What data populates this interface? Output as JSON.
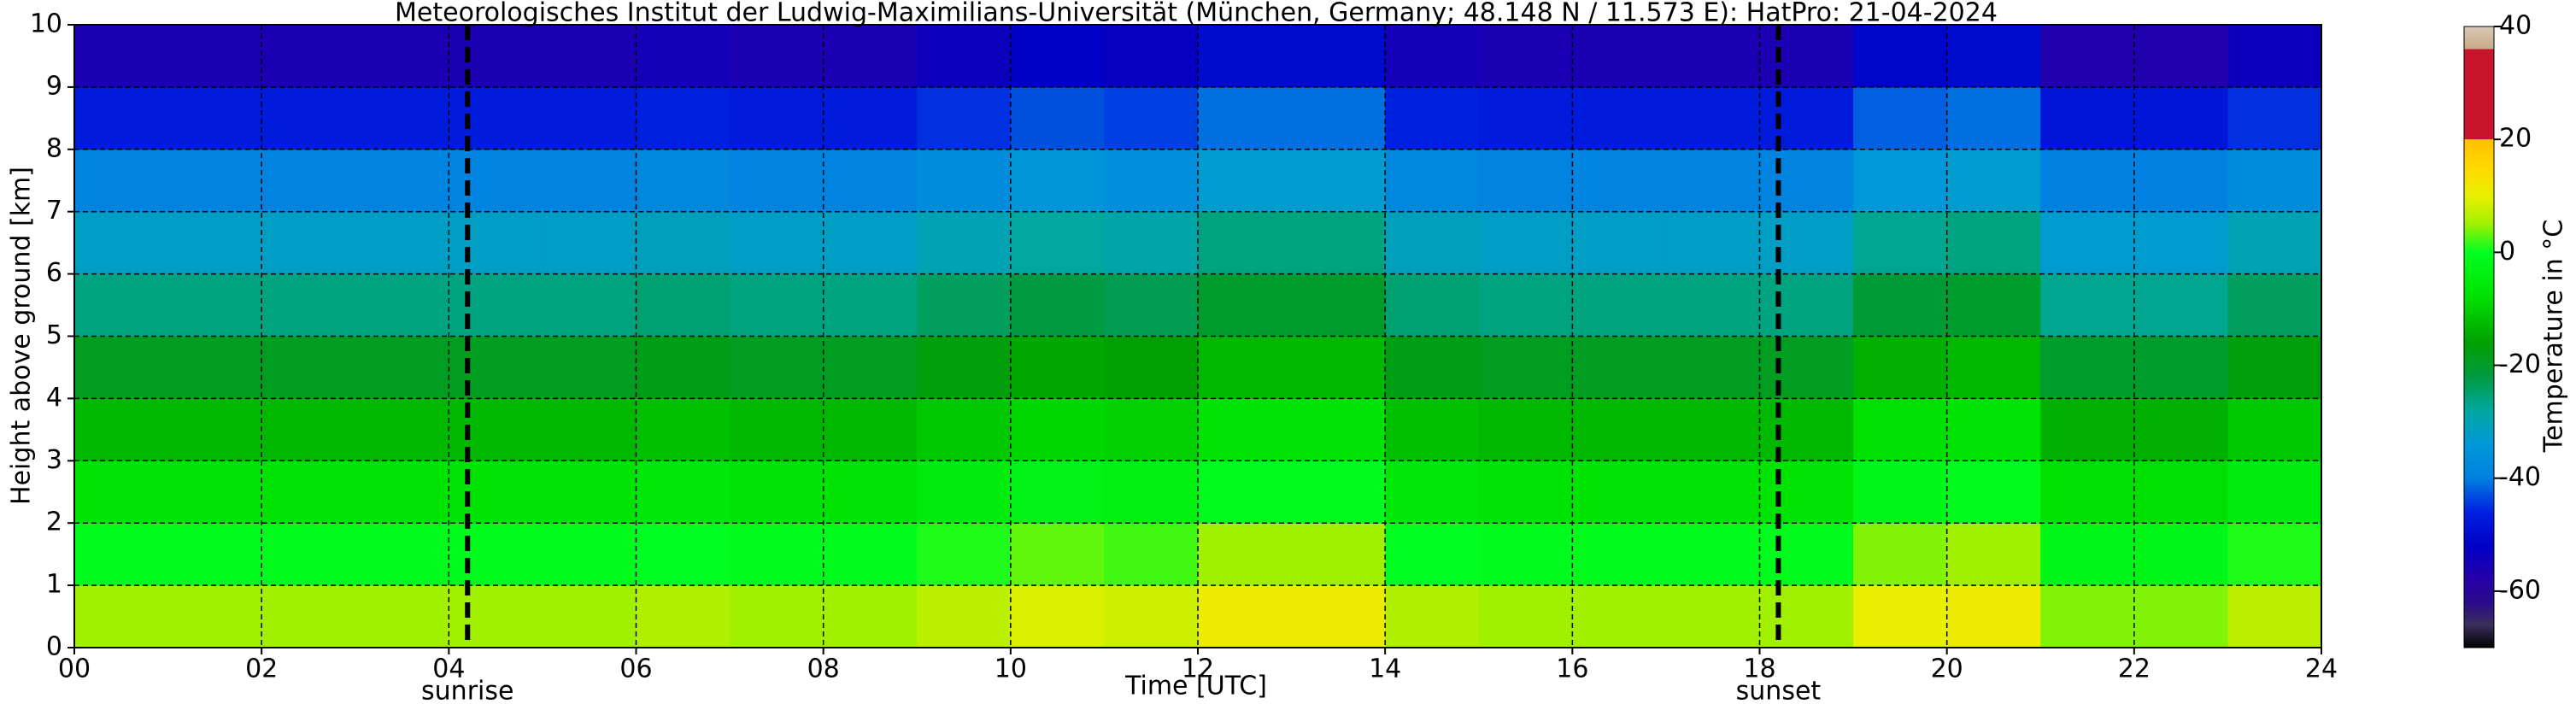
{
  "chart_data": {
    "type": "heatmap",
    "title": "Meteorologisches Institut der Ludwig-Maximilians-Universität (München, Germany; 48.148 N / 11.573 E):    HatPro: 21-04-2024",
    "x_label": "Time [UTC]",
    "y_label": "Height above ground [km]",
    "colorbar_label": "Temperature in °C",
    "x": [
      0.5,
      1.5,
      2.5,
      3.5,
      4.5,
      5.5,
      6.5,
      7.5,
      8.5,
      9.5,
      10.5,
      11.5,
      12.5,
      13.5,
      14.5,
      15.5,
      16.5,
      17.5,
      18.5,
      19.5,
      20.5,
      21.5,
      22.5,
      23.5
    ],
    "y": [
      0.5,
      1.5,
      2.5,
      3.5,
      4.5,
      5.5,
      6.5,
      7.5,
      8.5,
      9.5
    ],
    "z": [
      [
        5,
        5,
        5,
        5,
        5,
        5,
        6,
        5,
        5,
        7,
        9,
        8,
        11,
        11,
        6,
        5,
        5,
        5,
        5,
        10,
        11,
        4,
        4,
        7
      ],
      [
        -1,
        -1,
        -1,
        -1,
        -1,
        -1,
        0,
        -1,
        -1,
        1,
        3,
        2,
        5,
        5,
        0,
        -1,
        -1,
        -1,
        -1,
        4,
        5,
        -2,
        -2,
        1
      ],
      [
        -7,
        -7,
        -7,
        -7,
        -7,
        -7,
        -6,
        -7,
        -7,
        -5,
        -3,
        -4,
        -1,
        -1,
        -6,
        -7,
        -7,
        -7,
        -7,
        -2,
        -1,
        -8,
        -8,
        -5
      ],
      [
        -13,
        -13,
        -13,
        -13,
        -13,
        -13,
        -12,
        -13,
        -13,
        -11,
        -9,
        -10,
        -7,
        -7,
        -12,
        -13,
        -13,
        -13,
        -13,
        -8,
        -7,
        -14,
        -14,
        -11
      ],
      [
        -19,
        -19,
        -19,
        -19,
        -19,
        -19,
        -18,
        -19,
        -19,
        -17,
        -15,
        -16,
        -13,
        -13,
        -18,
        -19,
        -19,
        -19,
        -19,
        -14,
        -13,
        -20,
        -20,
        -17
      ],
      [
        -26,
        -26,
        -26,
        -26,
        -26,
        -26,
        -25,
        -26,
        -26,
        -24,
        -22,
        -23,
        -20,
        -20,
        -25,
        -26,
        -26,
        -26,
        -26,
        -21,
        -20,
        -27,
        -27,
        -24
      ],
      [
        -32,
        -32,
        -32,
        -32,
        -32,
        -32,
        -31,
        -32,
        -32,
        -30,
        -28,
        -29,
        -26,
        -26,
        -31,
        -32,
        -32,
        -32,
        -32,
        -27,
        -26,
        -33,
        -33,
        -30
      ],
      [
        -39,
        -39,
        -39,
        -39,
        -39,
        -39,
        -38,
        -39,
        -39,
        -37,
        -35,
        -36,
        -33,
        -33,
        -38,
        -39,
        -39,
        -39,
        -39,
        -34,
        -33,
        -40,
        -40,
        -37
      ],
      [
        -47,
        -47,
        -47,
        -47,
        -47,
        -47,
        -46,
        -47,
        -47,
        -45,
        -43,
        -44,
        -41,
        -41,
        -46,
        -47,
        -47,
        -47,
        -47,
        -42,
        -41,
        -48,
        -48,
        -45
      ],
      [
        -56,
        -56,
        -56,
        -56,
        -56,
        -56,
        -55,
        -56,
        -56,
        -54,
        -52,
        -53,
        -50,
        -50,
        -55,
        -56,
        -56,
        -56,
        -56,
        -51,
        -50,
        -57,
        -57,
        -54
      ]
    ],
    "xlim": [
      0,
      24
    ],
    "ylim": [
      0,
      10
    ],
    "clim": [
      -70,
      40
    ],
    "xticks": [
      {
        "value": 0,
        "label": "00"
      },
      {
        "value": 2,
        "label": "02"
      },
      {
        "value": 4,
        "label": "04"
      },
      {
        "value": 6,
        "label": "06"
      },
      {
        "value": 8,
        "label": "08"
      },
      10,
      12,
      14,
      16,
      18,
      20,
      22,
      24
    ],
    "yticks": [
      0,
      1,
      2,
      3,
      4,
      5,
      6,
      7,
      8,
      9,
      10
    ],
    "cticks": [
      -60,
      -40,
      -20,
      0,
      20,
      40
    ],
    "grid": true,
    "colorscale": [
      [
        -70,
        "#000000"
      ],
      [
        -66,
        "#3a2f5a"
      ],
      [
        -62,
        "#2a0a8a"
      ],
      [
        -58,
        "#2800a8"
      ],
      [
        -52,
        "#0000c8"
      ],
      [
        -46,
        "#0020e0"
      ],
      [
        -40,
        "#0080e0"
      ],
      [
        -34,
        "#0098d8"
      ],
      [
        -28,
        "#00a8a0"
      ],
      [
        -22,
        "#009a40"
      ],
      [
        -16,
        "#00a000"
      ],
      [
        -8,
        "#00e000"
      ],
      [
        0,
        "#00ff20"
      ],
      [
        5,
        "#a0f000"
      ],
      [
        10,
        "#e8f000"
      ],
      [
        15,
        "#ffd800"
      ],
      [
        20,
        "#ffc000"
      ],
      [
        20,
        "#c8142d"
      ],
      [
        36,
        "#c8142d"
      ],
      [
        36,
        "#c8aa88"
      ],
      [
        40,
        "#d8c8b8"
      ]
    ],
    "events": [
      {
        "x": 4.2,
        "label": "sunrise"
      },
      {
        "x": 18.2,
        "label": "sunset"
      }
    ]
  }
}
